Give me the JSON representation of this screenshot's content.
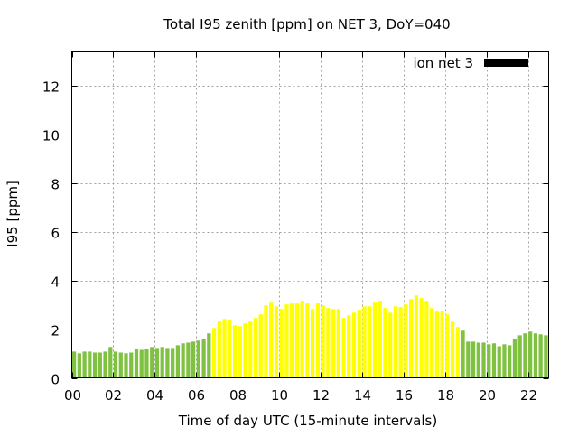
{
  "chart_data": {
    "type": "bar",
    "title": "Total I95 zenith [ppm] on NET 3, DoY=040",
    "xlabel": "Time of day UTC (15-minute intervals)",
    "ylabel": "I95 [ppm]",
    "xlim": [
      0,
      23
    ],
    "ylim": [
      0,
      13.4
    ],
    "x_ticks": [
      0,
      2,
      4,
      6,
      8,
      10,
      12,
      14,
      16,
      18,
      20,
      22
    ],
    "x_tick_labels": [
      "00",
      "02",
      "04",
      "06",
      "08",
      "10",
      "12",
      "14",
      "16",
      "18",
      "20",
      "22"
    ],
    "y_ticks": [
      0,
      2,
      4,
      6,
      8,
      10,
      12
    ],
    "y_tick_labels": [
      "0",
      "2",
      "4",
      "6",
      "8",
      "10",
      "12"
    ],
    "grid": true,
    "legend": {
      "label": "ion net 3",
      "color": "#000000",
      "placement": "top-right"
    },
    "bar_interval_hours": 0.25,
    "color_threshold": 2.0,
    "color_low": "#7fc241",
    "color_high": "#ffff00",
    "values": [
      1.08,
      1.01,
      1.08,
      1.08,
      1.04,
      1.04,
      1.08,
      1.27,
      1.08,
      1.04,
      1.01,
      1.04,
      1.19,
      1.15,
      1.19,
      1.27,
      1.23,
      1.27,
      1.23,
      1.23,
      1.34,
      1.42,
      1.45,
      1.49,
      1.53,
      1.6,
      1.83,
      2.05,
      2.35,
      2.42,
      2.39,
      2.16,
      2.12,
      2.24,
      2.31,
      2.46,
      2.61,
      2.98,
      3.09,
      2.94,
      2.83,
      3.02,
      3.06,
      3.06,
      3.17,
      3.06,
      2.83,
      3.06,
      2.98,
      2.87,
      2.83,
      2.83,
      2.46,
      2.57,
      2.68,
      2.8,
      2.94,
      2.94,
      3.09,
      3.17,
      2.87,
      2.68,
      2.94,
      2.91,
      3.02,
      3.24,
      3.39,
      3.28,
      3.17,
      2.87,
      2.72,
      2.76,
      2.61,
      2.31,
      2.09,
      1.94,
      1.49,
      1.49,
      1.45,
      1.45,
      1.38,
      1.42,
      1.3,
      1.38,
      1.34,
      1.6,
      1.75,
      1.83,
      1.9,
      1.83,
      1.79,
      1.75
    ]
  }
}
